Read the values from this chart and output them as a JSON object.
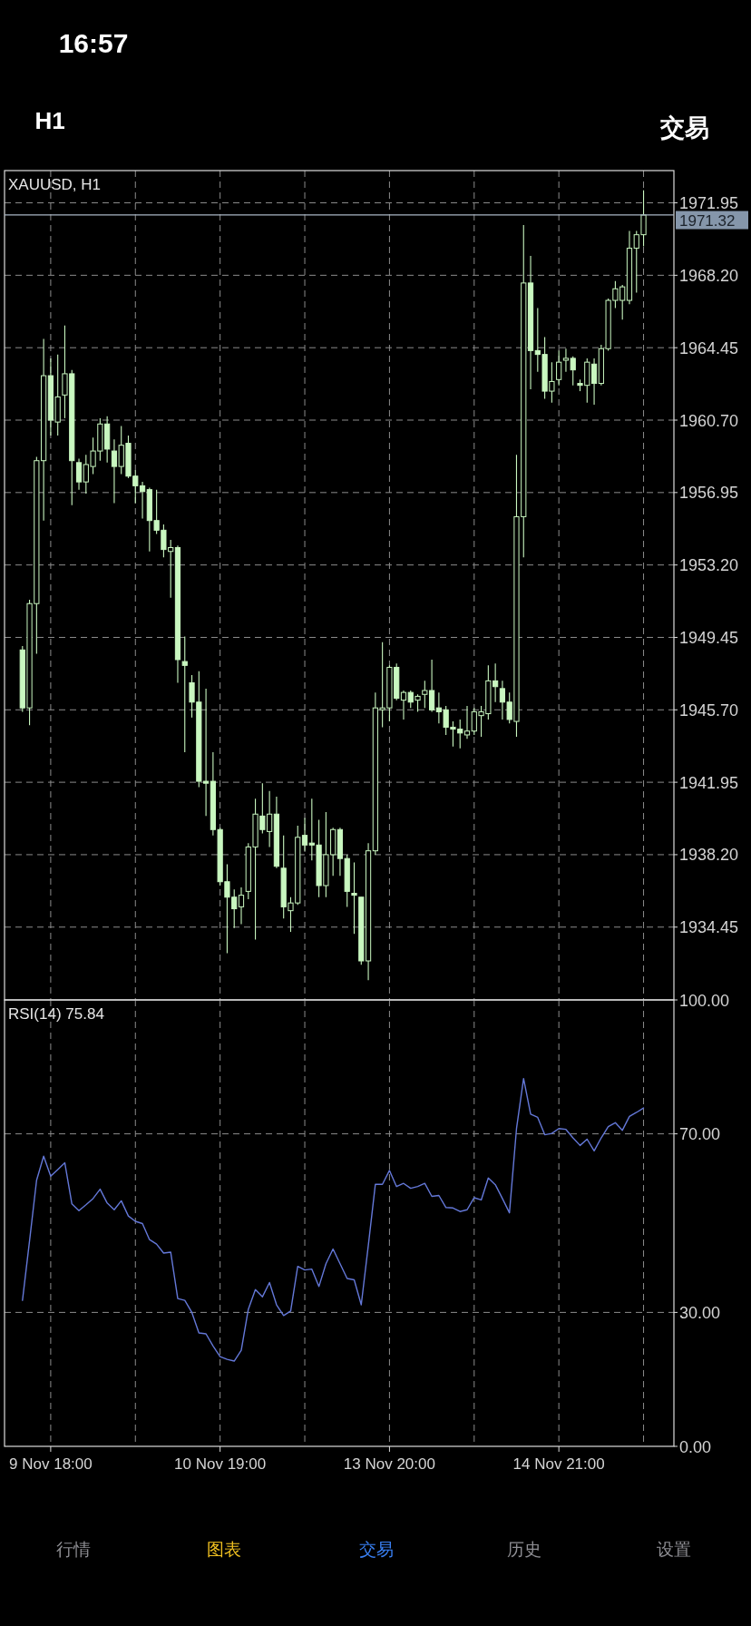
{
  "chart_data": [
    {
      "type": "candlestick",
      "title": "XAUUSD, H1",
      "color": "#c9f7c0",
      "categories": [
        null,
        null,
        null,
        null,
        null,
        null,
        null,
        null,
        null,
        null,
        null,
        null,
        null,
        null,
        null,
        null,
        null,
        null,
        null,
        null,
        null,
        null,
        null,
        null,
        null,
        null,
        null,
        null,
        null,
        null,
        null,
        null,
        null,
        null,
        null,
        null,
        null,
        null,
        null,
        null,
        null,
        null,
        null,
        null,
        null,
        null,
        null,
        null,
        null,
        null,
        null,
        null,
        null,
        null,
        null,
        null,
        null,
        null,
        null,
        null,
        null,
        null,
        null,
        null,
        null,
        null,
        null,
        null,
        null,
        null,
        null,
        null,
        null,
        null,
        null,
        null,
        null,
        null,
        null,
        null,
        null,
        null,
        null,
        null,
        null,
        null,
        null,
        null,
        null
      ],
      "ohlc": [
        [
          1948.8,
          1949.0,
          1945.6,
          1945.8
        ],
        [
          1945.8,
          1951.4,
          1944.9,
          1951.2
        ],
        [
          1951.2,
          1958.8,
          1948.6,
          1958.6
        ],
        [
          1958.6,
          1964.9,
          1955.5,
          1963.0
        ],
        [
          1963.0,
          1963.9,
          1959.9,
          1960.7
        ],
        [
          1960.6,
          1964.1,
          1959.9,
          1961.9
        ],
        [
          1962.0,
          1965.6,
          1960.8,
          1963.1
        ],
        [
          1963.1,
          1963.3,
          1956.3,
          1958.6
        ],
        [
          1958.5,
          1958.7,
          1957.1,
          1957.5
        ],
        [
          1957.5,
          1958.9,
          1956.9,
          1958.4
        ],
        [
          1958.3,
          1959.8,
          1957.9,
          1959.1
        ],
        [
          1959.1,
          1960.8,
          1958.6,
          1960.5
        ],
        [
          1960.5,
          1960.9,
          1958.5,
          1959.2
        ],
        [
          1959.1,
          1959.7,
          1956.4,
          1958.3
        ],
        [
          1958.3,
          1960.4,
          1957.9,
          1959.4
        ],
        [
          1959.5,
          1959.9,
          1957.7,
          1957.8
        ],
        [
          1957.8,
          1958.1,
          1956.4,
          1957.3
        ],
        [
          1957.3,
          1957.5,
          1955.6,
          1957.0
        ],
        [
          1957.1,
          1957.2,
          1953.9,
          1955.5
        ],
        [
          1955.5,
          1957.1,
          1954.8,
          1955.0
        ],
        [
          1955.0,
          1955.3,
          1953.6,
          1954.0
        ],
        [
          1953.9,
          1954.5,
          1951.5,
          1954.1
        ],
        [
          1954.1,
          1954.2,
          1947.1,
          1948.3
        ],
        [
          1948.2,
          1949.5,
          1943.5,
          1948.0
        ],
        [
          1947.1,
          1947.5,
          1945.3,
          1946.1
        ],
        [
          1946.1,
          1947.7,
          1941.7,
          1942.0
        ],
        [
          1942.0,
          1946.8,
          1940.2,
          1941.9
        ],
        [
          1942.0,
          1943.5,
          1939.2,
          1939.5
        ],
        [
          1939.5,
          1939.6,
          1936.6,
          1936.8
        ],
        [
          1936.8,
          1937.7,
          1933.1,
          1936.0
        ],
        [
          1936.0,
          1936.4,
          1934.4,
          1935.4
        ],
        [
          1935.5,
          1936.5,
          1934.6,
          1936.1
        ],
        [
          1936.3,
          1938.8,
          1935.9,
          1938.6
        ],
        [
          1938.6,
          1941.1,
          1933.8,
          1940.3
        ],
        [
          1940.2,
          1941.9,
          1939.3,
          1939.5
        ],
        [
          1939.4,
          1941.5,
          1938.6,
          1940.3
        ],
        [
          1940.3,
          1941.2,
          1937.5,
          1937.6
        ],
        [
          1937.5,
          1939.2,
          1934.9,
          1935.5
        ],
        [
          1935.3,
          1936.0,
          1934.2,
          1935.7
        ],
        [
          1935.7,
          1939.7,
          1935.6,
          1939.1
        ],
        [
          1939.2,
          1940.1,
          1938.4,
          1938.7
        ],
        [
          1938.8,
          1941.1,
          1937.9,
          1938.7
        ],
        [
          1938.7,
          1940.0,
          1936.0,
          1936.6
        ],
        [
          1936.6,
          1940.4,
          1936.0,
          1938.2
        ],
        [
          1938.2,
          1939.6,
          1937.1,
          1939.5
        ],
        [
          1939.5,
          1939.6,
          1937.1,
          1938.0
        ],
        [
          1938.0,
          1938.2,
          1935.5,
          1936.3
        ],
        [
          1936.2,
          1937.8,
          1934.1,
          1936.1
        ],
        [
          1936.0,
          1936.0,
          1932.5,
          1932.7
        ],
        [
          1932.7,
          1938.8,
          1931.7,
          1938.4
        ],
        [
          1938.4,
          1946.6,
          1938.2,
          1945.8
        ],
        [
          1945.7,
          1949.2,
          1944.8,
          1945.8
        ],
        [
          1945.8,
          1948.0,
          1945.1,
          1947.9
        ],
        [
          1947.9,
          1948.1,
          1946.2,
          1946.3
        ],
        [
          1946.2,
          1946.7,
          1945.2,
          1946.6
        ],
        [
          1946.6,
          1946.7,
          1945.8,
          1946.1
        ],
        [
          1946.2,
          1946.5,
          1945.6,
          1946.4
        ],
        [
          1946.5,
          1947.2,
          1945.8,
          1946.7
        ],
        [
          1946.7,
          1948.3,
          1945.6,
          1945.7
        ],
        [
          1945.8,
          1946.6,
          1945.0,
          1945.6
        ],
        [
          1945.7,
          1945.9,
          1944.4,
          1944.8
        ],
        [
          1944.8,
          1945.1,
          1943.8,
          1944.7
        ],
        [
          1944.7,
          1945.2,
          1943.7,
          1944.5
        ],
        [
          1944.4,
          1945.9,
          1944.2,
          1944.6
        ],
        [
          1944.6,
          1945.8,
          1944.4,
          1945.6
        ],
        [
          1945.4,
          1945.9,
          1944.3,
          1945.6
        ],
        [
          1945.5,
          1948.0,
          1945.2,
          1947.2
        ],
        [
          1947.2,
          1948.1,
          1946.1,
          1946.9
        ],
        [
          1946.8,
          1947.2,
          1945.2,
          1946.1
        ],
        [
          1946.1,
          1946.6,
          1945.0,
          1945.2
        ],
        [
          1945.1,
          1958.9,
          1944.3,
          1955.7
        ],
        [
          1955.7,
          1970.8,
          1953.6,
          1967.8
        ],
        [
          1967.8,
          1969.2,
          1962.3,
          1964.3
        ],
        [
          1964.3,
          1966.5,
          1963.2,
          1964.1
        ],
        [
          1964.1,
          1965.0,
          1961.8,
          1962.2
        ],
        [
          1962.2,
          1963.7,
          1961.6,
          1962.7
        ],
        [
          1962.8,
          1964.3,
          1962.5,
          1963.7
        ],
        [
          1963.8,
          1964.4,
          1963.2,
          1963.9
        ],
        [
          1963.9,
          1964.0,
          1962.5,
          1963.3
        ],
        [
          1962.6,
          1962.8,
          1962.2,
          1962.5
        ],
        [
          1962.5,
          1963.9,
          1961.6,
          1963.7
        ],
        [
          1963.6,
          1963.9,
          1961.5,
          1962.6
        ],
        [
          1962.6,
          1964.6,
          1962.5,
          1964.4
        ],
        [
          1964.4,
          1967.0,
          1964.3,
          1966.9
        ],
        [
          1966.9,
          1967.9,
          1966.5,
          1967.5
        ],
        [
          1966.9,
          1967.7,
          1965.9,
          1967.6
        ],
        [
          1966.9,
          1970.5,
          1966.7,
          1969.6
        ],
        [
          1969.6,
          1970.5,
          1967.3,
          1970.3
        ],
        [
          1970.3,
          1972.6,
          1969.7,
          1971.32
        ]
      ],
      "ylim": [
        1930.68,
        1973.62
      ],
      "yticks": [
        {
          "value": 1934.45,
          "label": "1934.45"
        },
        {
          "value": 1938.2,
          "label": "1938.20"
        },
        {
          "value": 1941.95,
          "label": "1941.95"
        },
        {
          "value": 1945.7,
          "label": "1945.70"
        },
        {
          "value": 1949.45,
          "label": "1949.45"
        },
        {
          "value": 1953.2,
          "label": "1953.20"
        },
        {
          "value": 1956.95,
          "label": "1956.95"
        },
        {
          "value": 1960.7,
          "label": "1960.70"
        },
        {
          "value": 1964.45,
          "label": "1964.45"
        },
        {
          "value": 1968.2,
          "label": "1968.20"
        },
        {
          "value": 1971.95,
          "label": "1971.95"
        }
      ],
      "grid": true,
      "tick_labels": "y",
      "ref_lines": [
        {
          "axis": "y",
          "value": 1971.32,
          "label": "1971.32",
          "color": "#a9b6c4"
        }
      ],
      "annotations": [
        "16:57",
        "H1",
        "交易"
      ]
    },
    {
      "type": "line",
      "title": "RSI(14) 75.84",
      "categories": [
        null,
        null,
        null,
        null,
        "9 Nov 18:00",
        null,
        null,
        null,
        null,
        null,
        null,
        null,
        null,
        null,
        null,
        null,
        null,
        null,
        null,
        null,
        null,
        null,
        null,
        null,
        null,
        null,
        null,
        null,
        "10 Nov 19:00",
        null,
        null,
        null,
        null,
        null,
        null,
        null,
        null,
        null,
        null,
        null,
        null,
        null,
        null,
        null,
        null,
        null,
        null,
        null,
        null,
        null,
        null,
        null,
        "13 Nov 20:00",
        null,
        null,
        null,
        null,
        null,
        null,
        null,
        null,
        null,
        null,
        null,
        null,
        null,
        null,
        null,
        null,
        null,
        null,
        null,
        null,
        null,
        null,
        null,
        "14 Nov 21:00",
        null,
        null,
        null,
        null,
        null,
        null,
        null,
        null,
        null,
        null,
        null,
        null
      ],
      "series": [
        {
          "color": "#6478d8",
          "values": [
            32.7,
            46,
            59.6,
            65.0,
            60.5,
            62.0,
            63.5,
            54.3,
            52.8,
            54.1,
            55.5,
            57.6,
            54.5,
            53.0,
            55.0,
            51.6,
            50.4,
            49.9,
            46.3,
            45.3,
            43.3,
            43.5,
            33.1,
            32.7,
            30.0,
            25.4,
            25.2,
            22.5,
            20.1,
            19.5,
            19.1,
            21.5,
            30.7,
            35.1,
            33.5,
            36.7,
            31.7,
            29.3,
            30.3,
            40.3,
            39.5,
            39.7,
            35.8,
            40.9,
            44.2,
            40.9,
            37.6,
            37.3,
            31.7,
            45.0,
            58.7,
            58.7,
            61.8,
            58.2,
            58.9,
            57.8,
            58.2,
            58.9,
            56.0,
            56.2,
            53.5,
            53.4,
            52.6,
            53.0,
            55.7,
            55.2,
            60.1,
            58.6,
            55.5,
            52.3,
            71.2,
            82.4,
            74.4,
            73.7,
            69.8,
            70.1,
            71.2,
            71.0,
            69.1,
            67.4,
            68.8,
            66.2,
            69.1,
            71.6,
            72.5,
            70.8,
            73.9,
            74.8,
            75.8
          ]
        }
      ],
      "ylim": [
        0,
        100
      ],
      "yticks": [
        {
          "value": 0,
          "label": "0.00"
        },
        {
          "value": 30,
          "label": "30.00"
        },
        {
          "value": 70,
          "label": "70.00"
        },
        {
          "value": 100,
          "label": "100.00"
        }
      ],
      "grid": true,
      "annotations": [
        "行情",
        "图表",
        "交易",
        "历史",
        "设置"
      ]
    }
  ]
}
